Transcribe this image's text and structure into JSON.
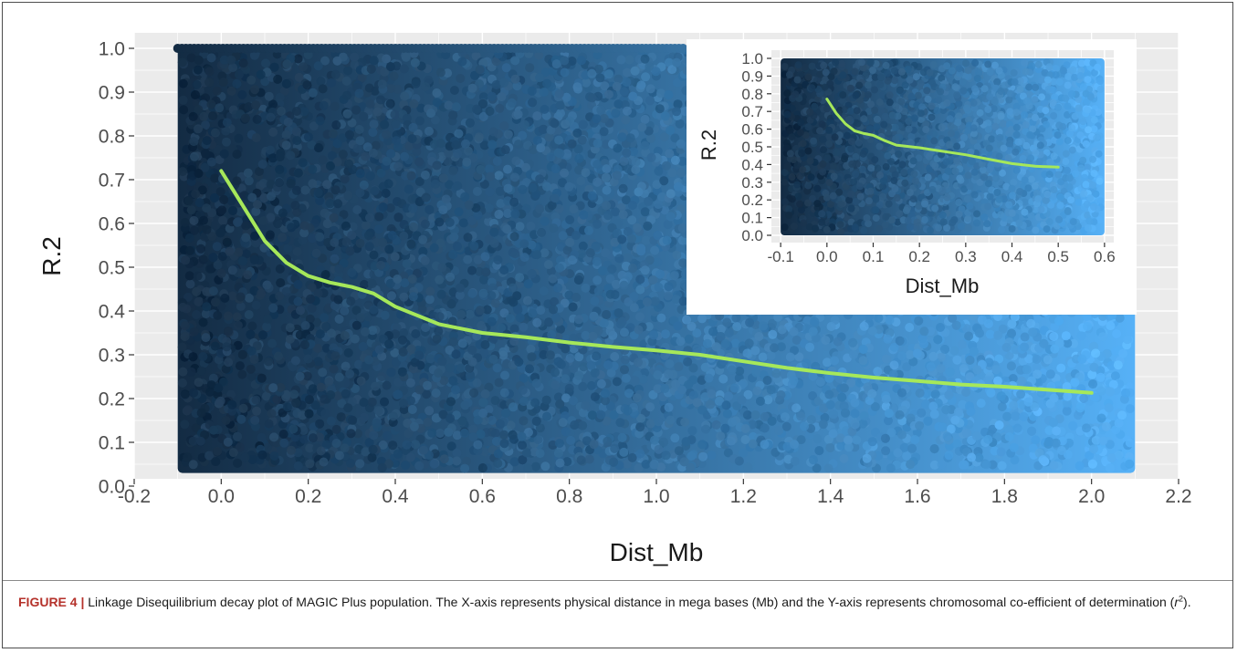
{
  "figure": {
    "caption_label": "FIGURE 4 |",
    "caption_text": "Linkage Disequilibrium decay plot of MAGIC Plus population. The X-axis represents physical distance in mega bases (Mb) and the Y-axis represents chromosomal co-efficient of determination (",
    "caption_r": "r",
    "caption_sup": "2",
    "caption_end": ")."
  },
  "colors": {
    "panel_background": "#ebebeb",
    "grid": "#ffffff",
    "point_dark": "#132b43",
    "point_light": "#56b1f7",
    "trend_line": "#a6e85a",
    "text": "#333333"
  },
  "chart_data": [
    {
      "type": "scatter",
      "xlabel": "Dist_Mb",
      "ylabel": "R.2",
      "xlim": [
        -0.2,
        2.2
      ],
      "ylim": [
        0.0,
        1.0
      ],
      "x_ticks": [
        "-0.2",
        "0.0",
        "0.2",
        "0.4",
        "0.6",
        "0.8",
        "1.0",
        "1.2",
        "1.4",
        "1.6",
        "1.8",
        "2.0",
        "2.2"
      ],
      "y_ticks": [
        "0.0",
        "0.1",
        "0.2",
        "0.3",
        "0.4",
        "0.5",
        "0.6",
        "0.7",
        "0.8",
        "0.9",
        "1.0"
      ],
      "points_x_range": [
        -0.1,
        2.1
      ],
      "points_y_range": [
        0.03,
        1.0
      ],
      "color_gradient": "dark navy at low x to light blue at high x",
      "grid": true,
      "trend_line": {
        "x": [
          0.0,
          0.05,
          0.1,
          0.15,
          0.2,
          0.25,
          0.3,
          0.35,
          0.4,
          0.5,
          0.6,
          0.7,
          0.8,
          0.9,
          1.0,
          1.1,
          1.2,
          1.3,
          1.4,
          1.5,
          1.6,
          1.7,
          1.8,
          1.9,
          2.0
        ],
        "y": [
          0.72,
          0.64,
          0.56,
          0.51,
          0.48,
          0.465,
          0.455,
          0.44,
          0.41,
          0.37,
          0.35,
          0.34,
          0.328,
          0.318,
          0.31,
          0.3,
          0.285,
          0.27,
          0.258,
          0.248,
          0.24,
          0.232,
          0.227,
          0.22,
          0.213
        ]
      }
    },
    {
      "type": "scatter",
      "xlabel": "Dist_Mb",
      "ylabel": "R.2",
      "xlim": [
        -0.12,
        0.62
      ],
      "ylim": [
        0.0,
        1.0
      ],
      "x_ticks": [
        "-0.1",
        "0.0",
        "0.1",
        "0.2",
        "0.3",
        "0.4",
        "0.5",
        "0.6"
      ],
      "y_ticks": [
        "0.0",
        "0.1",
        "0.2",
        "0.3",
        "0.4",
        "0.5",
        "0.6",
        "0.7",
        "0.8",
        "0.9",
        "1.0"
      ],
      "points_x_range": [
        -0.1,
        0.6
      ],
      "points_y_range": [
        0.0,
        1.0
      ],
      "color_gradient": "dark navy at low x to light blue at high x",
      "grid": true,
      "trend_line": {
        "x": [
          0.0,
          0.02,
          0.04,
          0.06,
          0.08,
          0.1,
          0.125,
          0.15,
          0.2,
          0.25,
          0.3,
          0.35,
          0.4,
          0.45,
          0.5
        ],
        "y": [
          0.77,
          0.69,
          0.63,
          0.59,
          0.575,
          0.565,
          0.535,
          0.51,
          0.495,
          0.475,
          0.455,
          0.43,
          0.405,
          0.39,
          0.385
        ]
      }
    }
  ]
}
